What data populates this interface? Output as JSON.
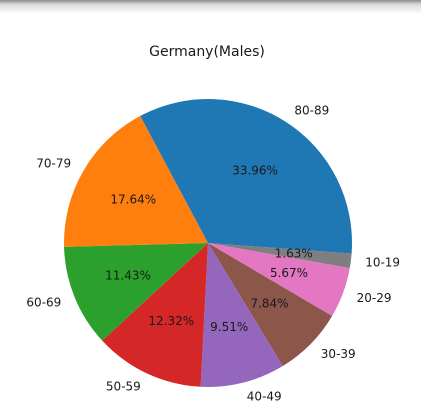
{
  "chart_data": {
    "type": "pie",
    "title": "Germany(Males)",
    "slices": [
      {
        "label": "10-19",
        "value": 1.63,
        "pct_label": "1.63%",
        "color": "#7f7f7f"
      },
      {
        "label": "20-29",
        "value": 5.67,
        "pct_label": "5.67%",
        "color": "#e377c2"
      },
      {
        "label": "30-39",
        "value": 7.84,
        "pct_label": "7.84%",
        "color": "#8c564b"
      },
      {
        "label": "40-49",
        "value": 9.51,
        "pct_label": "9.51%",
        "color": "#9467bd"
      },
      {
        "label": "50-59",
        "value": 12.32,
        "pct_label": "12.32%",
        "color": "#d62728"
      },
      {
        "label": "60-69",
        "value": 11.43,
        "pct_label": "11.43%",
        "color": "#2ca02c"
      },
      {
        "label": "70-79",
        "value": 17.64,
        "pct_label": "17.64%",
        "color": "#ff7f0e"
      },
      {
        "label": "80-89",
        "value": 33.96,
        "pct_label": "33.96%",
        "color": "#1f77b4"
      }
    ],
    "direction": "clockwise",
    "legend": "none"
  }
}
